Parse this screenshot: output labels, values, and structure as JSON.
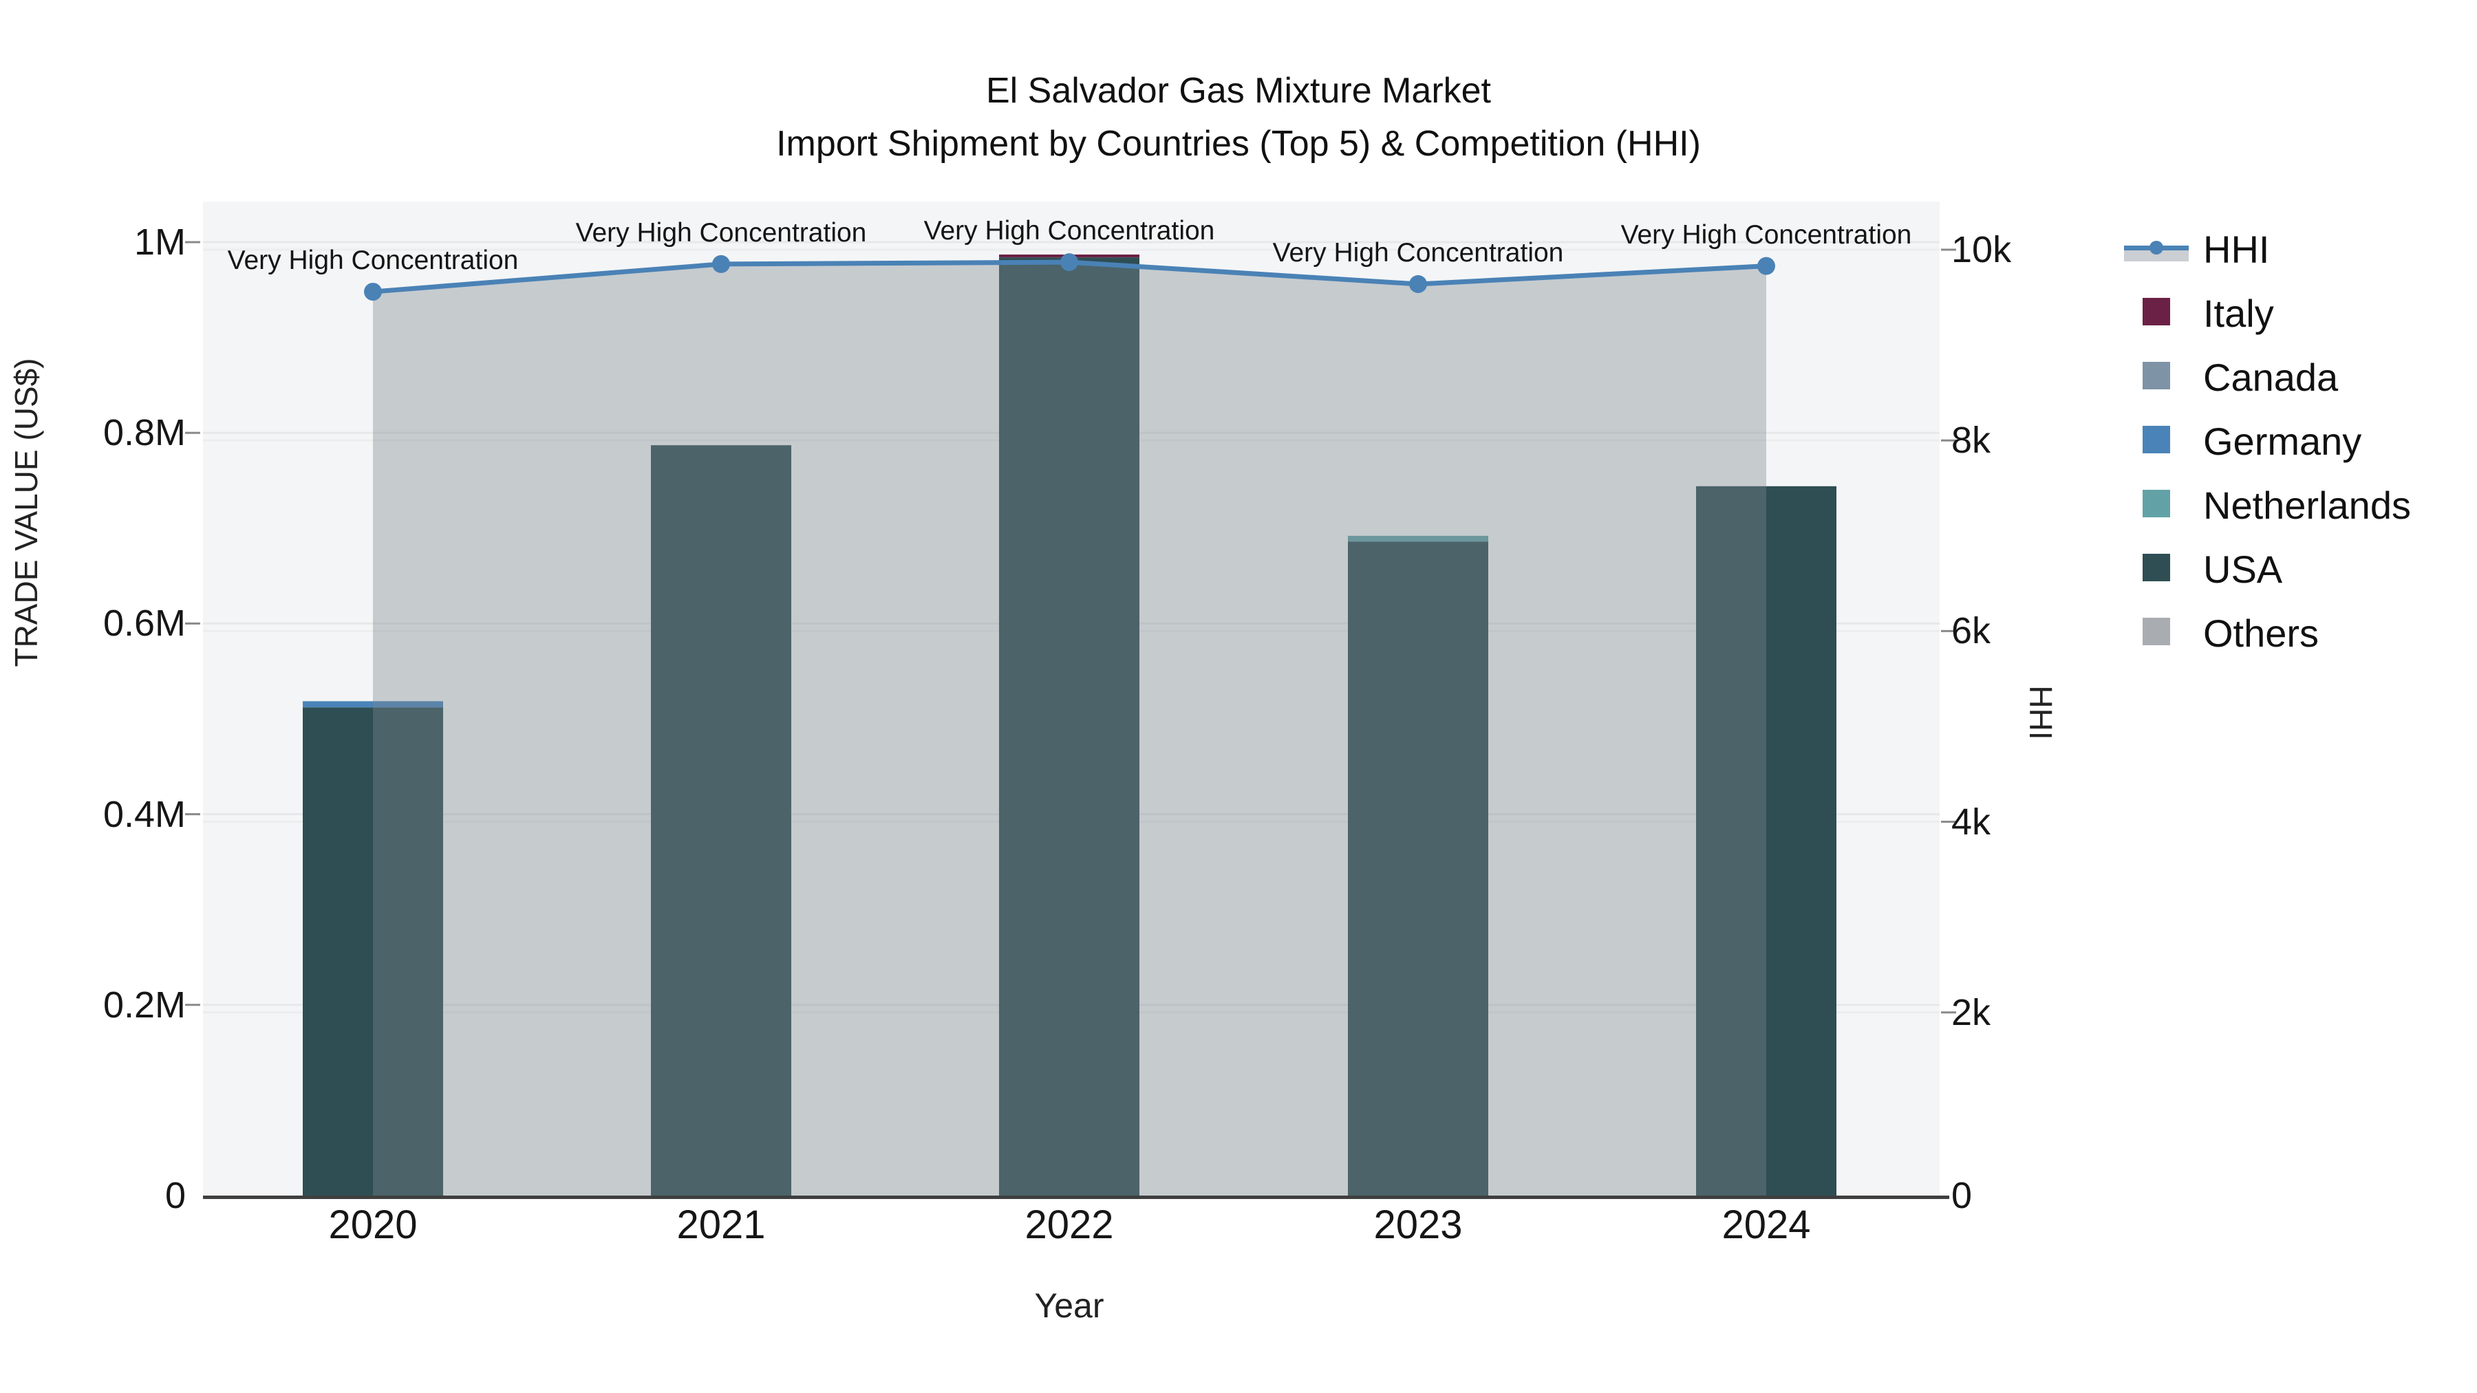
{
  "title": {
    "line1": "El Salvador Gas Mixture Market",
    "line2": "Import Shipment by Countries (Top 5) & Competition (HHI)"
  },
  "axes": {
    "x_title": "Year",
    "y_left_title": "TRADE VALUE (US$)",
    "y_right_title": "HHI",
    "y_left_tick_labels": [
      "0",
      "0.2M",
      "0.4M",
      "0.6M",
      "0.8M",
      "1M"
    ],
    "y_right_tick_labels": [
      "0",
      "2k",
      "4k",
      "6k",
      "8k",
      "10k"
    ],
    "x_tick_labels": [
      "2020",
      "2021",
      "2022",
      "2023",
      "2024"
    ]
  },
  "legend": {
    "items": [
      {
        "label": "HHI",
        "type": "line",
        "color": "#4a82b6",
        "band_color": "rgba(124,133,143,0.40)"
      },
      {
        "label": "Italy",
        "type": "square",
        "color": "#6b2145"
      },
      {
        "label": "Canada",
        "type": "square",
        "color": "#7e93a6"
      },
      {
        "label": "Germany",
        "type": "square",
        "color": "#4a83b8"
      },
      {
        "label": "Netherlands",
        "type": "square",
        "color": "#62a2a6"
      },
      {
        "label": "USA",
        "type": "square",
        "color": "#2e4e53"
      },
      {
        "label": "Others",
        "type": "square",
        "color": "#a9adb1"
      }
    ]
  },
  "colors": {
    "plot_background": "#f4f5f6",
    "gridline_major": "#e6e8e9",
    "gridline_minor": "#ebedee",
    "axis_line": "#3f3f3f",
    "hhi_line": "#4a82b6",
    "hhi_area_fill": "rgba(124,133,143,0.38)",
    "tick_mark": "#8a8a8a"
  },
  "chart_data": {
    "type": "bar+line",
    "title": "El Salvador Gas Mixture Market — Import Shipment by Countries (Top 5) & Competition (HHI)",
    "categories": [
      "2020",
      "2021",
      "2022",
      "2023",
      "2024"
    ],
    "bar_value_unit": "US$ trade value",
    "series": [
      {
        "name": "Italy",
        "color": "#6b2145",
        "values": [
          0,
          0,
          3000,
          0,
          0
        ]
      },
      {
        "name": "Canada",
        "color": "#7e93a6",
        "values": [
          0,
          0,
          0,
          0,
          0
        ]
      },
      {
        "name": "Germany",
        "color": "#4a83b8",
        "values": [
          6500,
          0,
          0,
          0,
          0
        ]
      },
      {
        "name": "Netherlands",
        "color": "#62a2a6",
        "values": [
          0,
          0,
          0,
          6000,
          0
        ]
      },
      {
        "name": "USA",
        "color": "#2e4e53",
        "values": [
          512000,
          787000,
          984000,
          686000,
          744000
        ]
      },
      {
        "name": "Others",
        "color": "#a9adb1",
        "values": [
          0,
          0,
          0,
          0,
          0
        ]
      }
    ],
    "stack_order_bottom_to_top": [
      "USA",
      "Netherlands",
      "Germany",
      "Canada",
      "Italy",
      "Others"
    ],
    "line_series": {
      "name": "HHI",
      "color": "#4a82b6",
      "values": [
        9480,
        9770,
        9790,
        9560,
        9750
      ],
      "area_fill": "rgba(124,133,143,0.38)"
    },
    "annotations": [
      {
        "x": "2020",
        "text": "Very High Concentration"
      },
      {
        "x": "2021",
        "text": "Very High Concentration"
      },
      {
        "x": "2022",
        "text": "Very High Concentration"
      },
      {
        "x": "2023",
        "text": "Very High Concentration"
      },
      {
        "x": "2024",
        "text": "Very High Concentration"
      }
    ],
    "xlabel": "Year",
    "ylabel_left": "TRADE VALUE (US$)",
    "ylabel_right": "HHI",
    "ylim_left": [
      0,
      1042000
    ],
    "ylim_right": [
      0,
      10420
    ],
    "grid": true,
    "legend_position": "right"
  }
}
